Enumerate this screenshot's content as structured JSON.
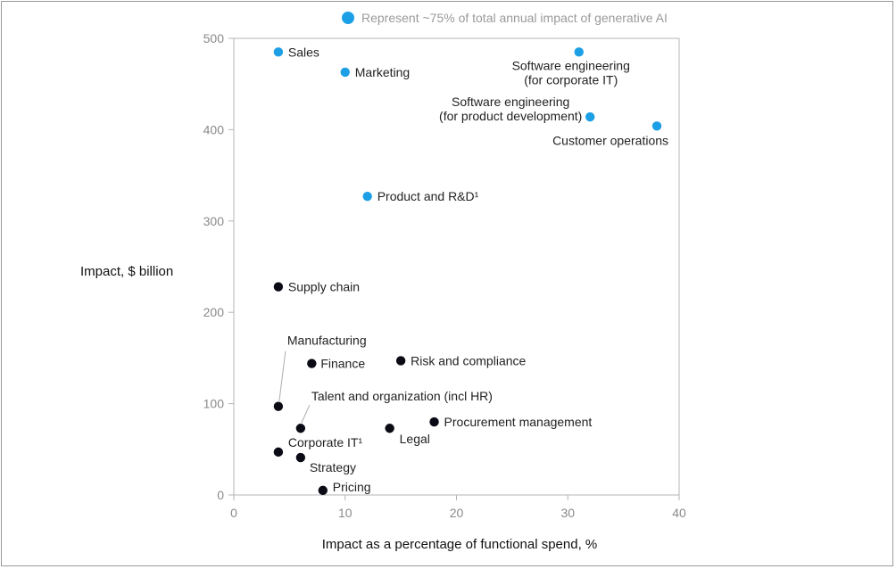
{
  "chart_data": {
    "type": "scatter",
    "title": "",
    "xlabel": "Impact as a percentage of functional spend, %",
    "ylabel": "Impact, $ billion",
    "xlim": [
      0,
      40
    ],
    "ylim": [
      0,
      500
    ],
    "xticks": [
      "0",
      "10",
      "20",
      "30",
      "40"
    ],
    "yticks": [
      "0",
      "100",
      "200",
      "300",
      "400",
      "500"
    ],
    "legend": {
      "label": "Represent ~75% of total annual impact of generative AI",
      "color": "#1d9fe6"
    },
    "colors": {
      "highlight": "#1d9fe6",
      "other": "#0b0b16"
    },
    "points": [
      {
        "name": "Sales",
        "lines": [
          "Sales"
        ],
        "x": 4,
        "y": 485,
        "highlight": true
      },
      {
        "name": "Marketing",
        "lines": [
          "Marketing"
        ],
        "x": 10,
        "y": 463,
        "highlight": true
      },
      {
        "name": "Software engineering (for corporate IT)",
        "lines": [
          "Software engineering",
          "(for corporate IT)"
        ],
        "x": 31,
        "y": 485,
        "highlight": true
      },
      {
        "name": "Software engineering (for product development)",
        "lines": [
          "Software engineering",
          "(for product development)"
        ],
        "x": 32,
        "y": 414,
        "highlight": true
      },
      {
        "name": "Customer operations",
        "lines": [
          "Customer operations"
        ],
        "x": 38,
        "y": 404,
        "highlight": true
      },
      {
        "name": "Product and R&D",
        "lines": [
          "Product and R&D¹"
        ],
        "x": 12,
        "y": 327,
        "highlight": true
      },
      {
        "name": "Supply chain",
        "lines": [
          "Supply chain"
        ],
        "x": 4,
        "y": 228,
        "highlight": false
      },
      {
        "name": "Manufacturing",
        "lines": [
          "Manufacturing"
        ],
        "x": 4,
        "y": 97,
        "highlight": false
      },
      {
        "name": "Finance",
        "lines": [
          "Finance"
        ],
        "x": 7,
        "y": 144,
        "highlight": false
      },
      {
        "name": "Risk and compliance",
        "lines": [
          "Risk and compliance"
        ],
        "x": 15,
        "y": 147,
        "highlight": false
      },
      {
        "name": "Talent and organization (incl HR)",
        "lines": [
          "Talent and organization (incl HR)"
        ],
        "x": 6,
        "y": 73,
        "highlight": false
      },
      {
        "name": "Procurement management",
        "lines": [
          "Procurement management"
        ],
        "x": 18,
        "y": 80,
        "highlight": false
      },
      {
        "name": "Legal",
        "lines": [
          "Legal"
        ],
        "x": 14,
        "y": 73,
        "highlight": false
      },
      {
        "name": "Corporate IT",
        "lines": [
          "Corporate IT¹"
        ],
        "x": 4,
        "y": 47,
        "highlight": false
      },
      {
        "name": "Strategy",
        "lines": [
          "Strategy"
        ],
        "x": 6,
        "y": 41,
        "highlight": false
      },
      {
        "name": "Pricing",
        "lines": [
          "Pricing"
        ],
        "x": 8,
        "y": 5,
        "highlight": false
      }
    ]
  }
}
